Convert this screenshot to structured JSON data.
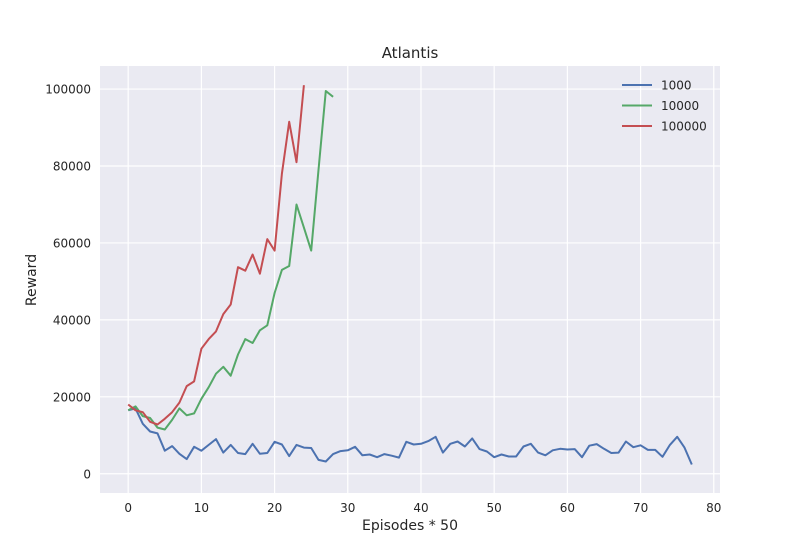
{
  "chart_data": {
    "type": "line",
    "title": "Atlantis",
    "xlabel": "Episodes * 50",
    "ylabel": "Reward",
    "xlim": [
      -3.85,
      80.85
    ],
    "ylim": [
      -5000,
      106000
    ],
    "xticks": [
      0,
      10,
      20,
      30,
      40,
      50,
      60,
      70,
      80
    ],
    "yticks": [
      0,
      20000,
      40000,
      60000,
      80000,
      100000
    ],
    "grid": true,
    "legend_position": "top-right",
    "series": [
      {
        "name": "1000",
        "color": "#4c72b0",
        "values": [
          16500,
          17000,
          13000,
          11000,
          10500,
          6000,
          7200,
          5200,
          3800,
          7000,
          6000,
          7500,
          9000,
          5500,
          7500,
          5400,
          5100,
          7800,
          5200,
          5400,
          8300,
          7600,
          4600,
          7500,
          6800,
          6700,
          3600,
          3200,
          5100,
          5900,
          6100,
          7000,
          4800,
          5000,
          4300,
          5100,
          4700,
          4200,
          8300,
          7600,
          7800,
          8500,
          9600,
          5500,
          7800,
          8400,
          7100,
          9200,
          6400,
          5800,
          4300,
          5000,
          4500,
          4500,
          7100,
          7800,
          5500,
          4800,
          6100,
          6500,
          6300,
          6400,
          4300,
          7300,
          7700,
          6500,
          5400,
          5500,
          8400,
          6900,
          7400,
          6200,
          6200,
          4400,
          7500,
          9600,
          6800,
          2400
        ]
      },
      {
        "name": "10000",
        "color": "#55a868",
        "values": [
          16500,
          17500,
          15000,
          14500,
          12000,
          11500,
          14000,
          17000,
          15200,
          15700,
          19500,
          22500,
          26000,
          27800,
          25500,
          31000,
          35000,
          34000,
          37300,
          38600,
          47000,
          53000,
          54000,
          70000,
          64000,
          58000,
          79000,
          99500,
          98000
        ]
      },
      {
        "name": "100000",
        "color": "#c44e52",
        "values": [
          18000,
          16500,
          16000,
          13500,
          12800,
          14300,
          16000,
          18500,
          22800,
          24000,
          32500,
          35000,
          37000,
          41500,
          44000,
          53700,
          52800,
          57000,
          52000,
          61000,
          58000,
          78000,
          91500,
          81000,
          101000
        ]
      }
    ]
  }
}
